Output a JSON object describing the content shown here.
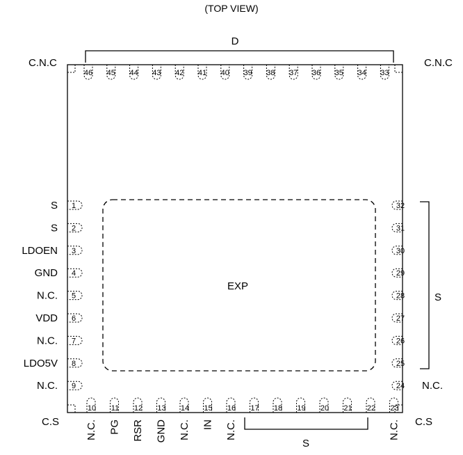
{
  "title": "(TOP VIEW)",
  "exposed_pad_label": "EXP",
  "corners": {
    "top_left": "C.N.C",
    "top_right": "C.N.C",
    "bottom_left": "C.S",
    "bottom_right": "C.S"
  },
  "groups": {
    "top": "D",
    "right": "S",
    "bottom": "S"
  },
  "pins": [
    {
      "num": "1",
      "name": "S"
    },
    {
      "num": "2",
      "name": "S"
    },
    {
      "num": "3",
      "name": "LDOEN"
    },
    {
      "num": "4",
      "name": "GND"
    },
    {
      "num": "5",
      "name": "N.C."
    },
    {
      "num": "6",
      "name": "VDD"
    },
    {
      "num": "7",
      "name": "N.C."
    },
    {
      "num": "8",
      "name": "LDO5V"
    },
    {
      "num": "9",
      "name": "N.C."
    },
    {
      "num": "10",
      "name": "N.C."
    },
    {
      "num": "11",
      "name": "PG"
    },
    {
      "num": "12",
      "name": "RSR"
    },
    {
      "num": "13",
      "name": "GND"
    },
    {
      "num": "14",
      "name": "N.C."
    },
    {
      "num": "15",
      "name": "IN"
    },
    {
      "num": "16",
      "name": "N.C."
    },
    {
      "num": "17",
      "name": ""
    },
    {
      "num": "18",
      "name": ""
    },
    {
      "num": "19",
      "name": ""
    },
    {
      "num": "20",
      "name": ""
    },
    {
      "num": "21",
      "name": ""
    },
    {
      "num": "22",
      "name": ""
    },
    {
      "num": "23",
      "name": "N.C."
    },
    {
      "num": "24",
      "name": "N.C."
    },
    {
      "num": "25",
      "name": ""
    },
    {
      "num": "26",
      "name": ""
    },
    {
      "num": "27",
      "name": ""
    },
    {
      "num": "28",
      "name": ""
    },
    {
      "num": "29",
      "name": ""
    },
    {
      "num": "30",
      "name": ""
    },
    {
      "num": "31",
      "name": ""
    },
    {
      "num": "32",
      "name": ""
    },
    {
      "num": "33",
      "name": ""
    },
    {
      "num": "34",
      "name": ""
    },
    {
      "num": "35",
      "name": ""
    },
    {
      "num": "36",
      "name": ""
    },
    {
      "num": "37",
      "name": ""
    },
    {
      "num": "38",
      "name": ""
    },
    {
      "num": "39",
      "name": ""
    },
    {
      "num": "40",
      "name": ""
    },
    {
      "num": "41",
      "name": ""
    },
    {
      "num": "42",
      "name": ""
    },
    {
      "num": "43",
      "name": ""
    },
    {
      "num": "44",
      "name": ""
    },
    {
      "num": "45",
      "name": ""
    },
    {
      "num": "46",
      "name": ""
    }
  ]
}
